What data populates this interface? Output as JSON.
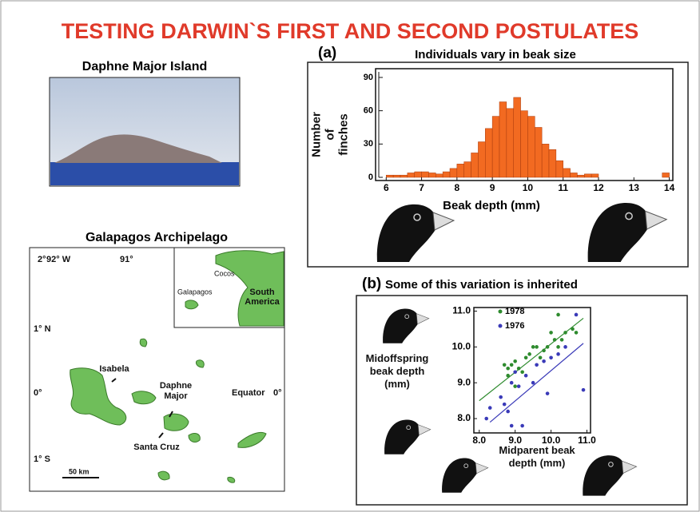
{
  "title": "TESTING DARWIN`S FIRST AND SECOND POSTULATES",
  "photo": {
    "label": "Daphne Major Island"
  },
  "map": {
    "title": "Galapagos Archipelago",
    "lon_labels": [
      "92° W",
      "91°"
    ],
    "lat_labels": [
      "2°",
      "1° N",
      "0°",
      "1° S"
    ],
    "islands": [
      "Isabela",
      "Daphne Major",
      "Santa Cruz"
    ],
    "equator": "Equator",
    "equator_deg": "0°",
    "scale": "50 km",
    "inset": [
      "Cocos",
      "Galapagos",
      "South America"
    ]
  },
  "chart_data": [
    {
      "type": "histogram",
      "panel": "(a)",
      "title": "Individuals vary in beak size",
      "x_label": "Beak depth (mm)",
      "y_label": "Number of finches",
      "color": "#f26a21",
      "bins": [
        6.0,
        6.2,
        6.4,
        6.6,
        6.8,
        7.0,
        7.2,
        7.4,
        7.6,
        7.8,
        8.0,
        8.2,
        8.4,
        8.6,
        8.8,
        9.0,
        9.2,
        9.4,
        9.6,
        9.8,
        10.0,
        10.2,
        10.4,
        10.6,
        10.8,
        11.0,
        11.2,
        11.4,
        11.6,
        11.8,
        12.0,
        12.2,
        12.4,
        12.6,
        12.8,
        13.0,
        13.2,
        13.4,
        13.6,
        13.8,
        14.0
      ],
      "values": [
        2,
        2,
        2,
        4,
        5,
        5,
        4,
        3,
        5,
        8,
        12,
        14,
        22,
        32,
        44,
        55,
        68,
        62,
        72,
        60,
        55,
        45,
        30,
        25,
        15,
        8,
        4,
        2,
        3,
        3,
        0,
        0,
        0,
        0,
        0,
        0,
        0,
        0,
        0,
        4
      ],
      "xlim": [
        5.7,
        14.1
      ],
      "ylim": [
        0,
        95
      ],
      "xticks": [
        6,
        7,
        8,
        9,
        10,
        11,
        12,
        13,
        14
      ],
      "yticks": [
        0,
        30,
        60,
        90
      ]
    },
    {
      "type": "scatter",
      "panel": "(b)",
      "title": "Some of this variation is inherited",
      "x_label": "Midparent beak depth (mm)",
      "y_label": "Midoffspring beak depth (mm)",
      "xlim": [
        7.85,
        11.1
      ],
      "ylim": [
        7.6,
        11.1
      ],
      "xticks": [
        {
          "value": 8,
          "label": "8.0"
        },
        {
          "value": 9,
          "label": "9.0"
        },
        {
          "value": 10,
          "label": "10.0"
        },
        {
          "value": 11,
          "label": "11.0"
        }
      ],
      "yticks": [
        {
          "value": 8,
          "label": "8.0"
        },
        {
          "value": 9,
          "label": "9.0"
        },
        {
          "value": 10,
          "label": "10.0"
        },
        {
          "value": 11,
          "label": "11.0"
        }
      ],
      "series": [
        {
          "name": "1978",
          "color": "#2e8b2e",
          "x": [
            8.7,
            8.8,
            8.9,
            9.0,
            9.1,
            9.2,
            9.3,
            9.4,
            9.5,
            9.6,
            9.7,
            9.8,
            9.9,
            10.0,
            10.1,
            10.2,
            10.2,
            10.3,
            10.4,
            10.6,
            10.7,
            8.8,
            9.0
          ],
          "values": [
            9.5,
            9.4,
            9.5,
            9.6,
            9.4,
            9.3,
            9.7,
            9.8,
            10.0,
            10.0,
            9.7,
            9.9,
            10.0,
            10.4,
            10.2,
            10.0,
            10.9,
            10.2,
            10.4,
            10.5,
            10.4,
            9.2,
            8.9
          ],
          "trend_x": [
            8.0,
            10.9
          ],
          "trend_values": [
            8.5,
            10.8
          ]
        },
        {
          "name": "1976",
          "color": "#3a3ab8",
          "x": [
            8.2,
            8.3,
            8.6,
            8.7,
            8.8,
            8.9,
            9.0,
            9.1,
            9.2,
            9.3,
            9.5,
            9.6,
            9.8,
            9.9,
            10.0,
            10.2,
            10.4,
            10.7,
            10.9,
            8.9
          ],
          "values": [
            8.0,
            8.3,
            8.6,
            8.4,
            8.2,
            9.0,
            9.3,
            8.9,
            7.8,
            9.2,
            9.0,
            9.5,
            9.6,
            8.7,
            9.7,
            9.8,
            10.0,
            10.9,
            8.8,
            7.8
          ],
          "trend_x": [
            8.3,
            10.9
          ],
          "trend_values": [
            7.9,
            10.1
          ]
        }
      ]
    }
  ]
}
